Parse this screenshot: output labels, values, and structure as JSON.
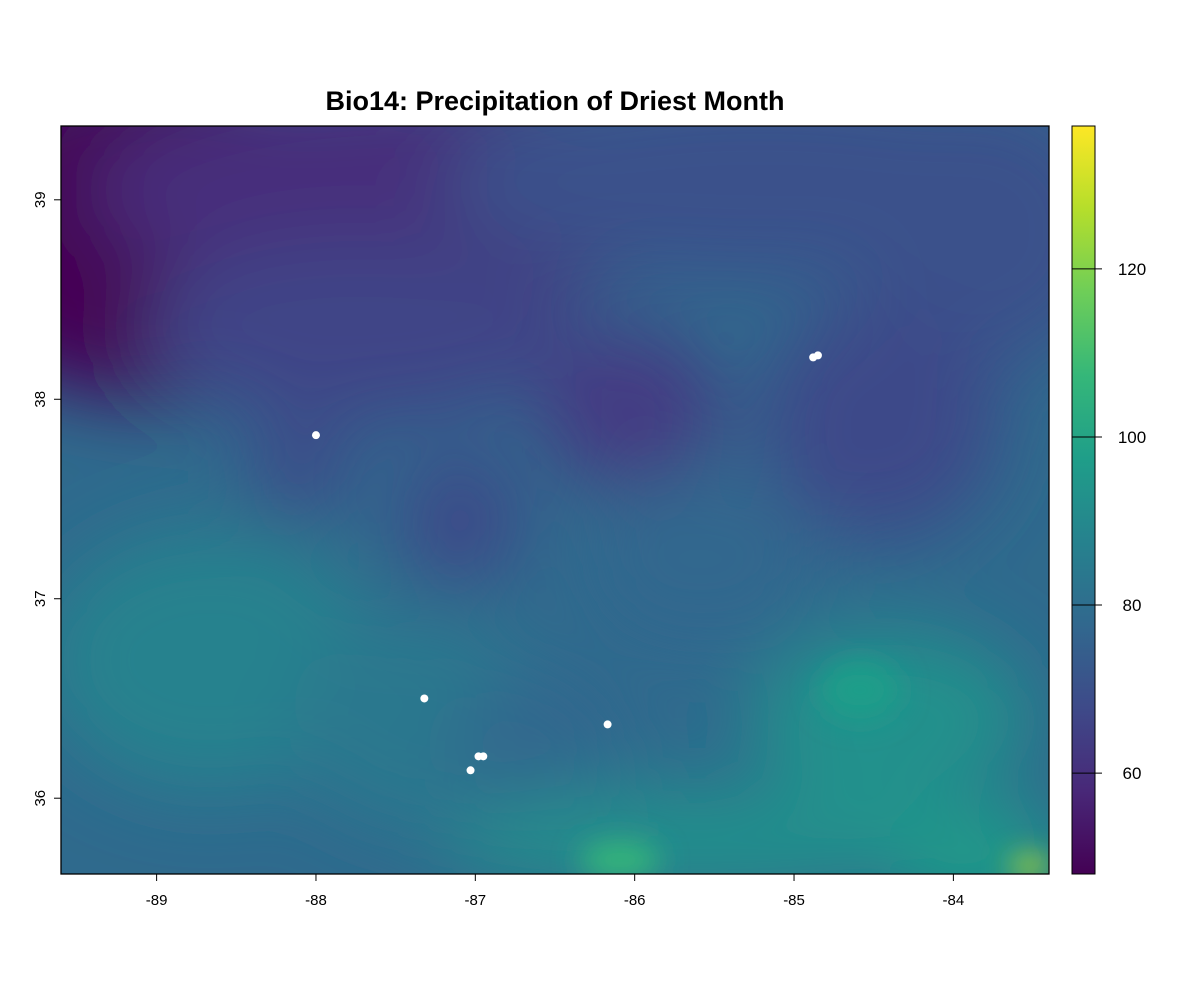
{
  "title": "Bio14: Precipitation of Driest Month",
  "map": {
    "extent": {
      "lon_min": -89.6,
      "lon_max": -83.4,
      "lat_min": 35.62,
      "lat_max": 39.37
    },
    "x_ticks": [
      {
        "value": -89,
        "label": "-89"
      },
      {
        "value": -88,
        "label": "-88"
      },
      {
        "value": -87,
        "label": "-87"
      },
      {
        "value": -86,
        "label": "-86"
      },
      {
        "value": -85,
        "label": "-85"
      },
      {
        "value": -84,
        "label": "-84"
      }
    ],
    "y_ticks": [
      {
        "value": 39,
        "label": "39"
      },
      {
        "value": 38,
        "label": "38"
      },
      {
        "value": 37,
        "label": "37"
      },
      {
        "value": 36,
        "label": "36"
      }
    ],
    "points": [
      {
        "lon": -88.0,
        "lat": 37.82
      },
      {
        "lon": -84.88,
        "lat": 38.21
      },
      {
        "lon": -84.85,
        "lat": 38.22
      },
      {
        "lon": -87.32,
        "lat": 36.5
      },
      {
        "lon": -86.17,
        "lat": 36.37
      },
      {
        "lon": -86.98,
        "lat": 36.21
      },
      {
        "lon": -86.95,
        "lat": 36.21
      },
      {
        "lon": -87.03,
        "lat": 36.14
      }
    ],
    "point_color": "#ffffff"
  },
  "colorbar": {
    "min": 48,
    "max": 137,
    "ticks": [
      {
        "value": 60,
        "label": "60"
      },
      {
        "value": 80,
        "label": "80"
      },
      {
        "value": 100,
        "label": "100"
      },
      {
        "value": 120,
        "label": "120"
      }
    ],
    "palette": [
      "#440154",
      "#482878",
      "#3e4a89",
      "#31688e",
      "#26828e",
      "#1f9e89",
      "#35b779",
      "#6ece58",
      "#b5de2b",
      "#fde725"
    ]
  }
}
